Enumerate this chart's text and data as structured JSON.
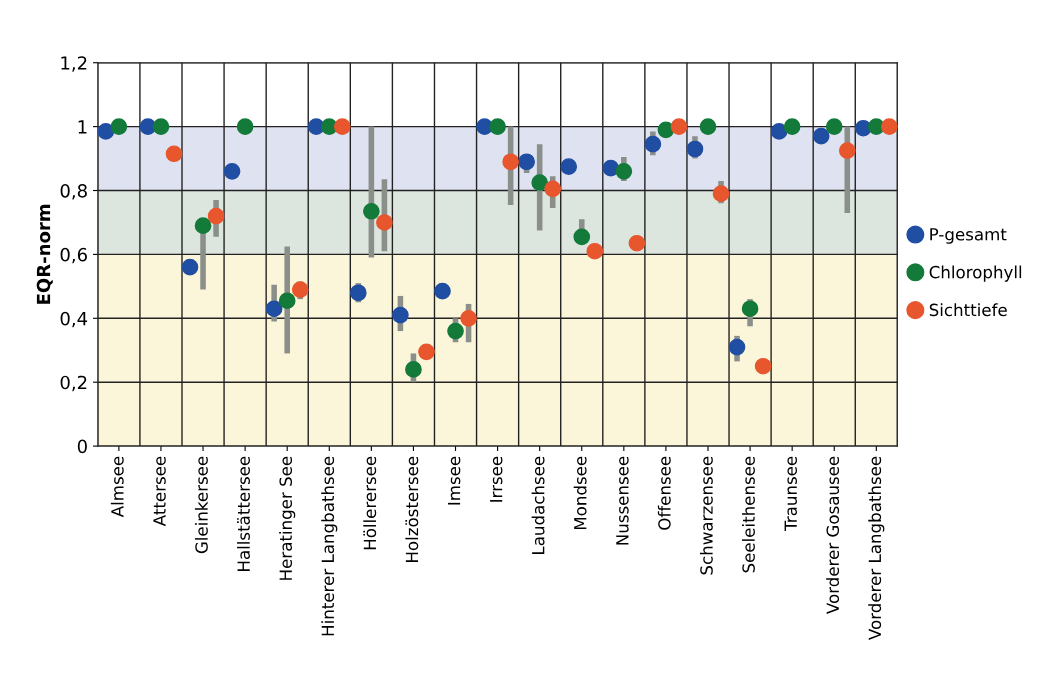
{
  "chart_data": {
    "type": "scatter",
    "ylabel": "EQR-norm",
    "categories": [
      "Almsee",
      "Attersee",
      "Gleinkersee",
      "Hallstättersee",
      "Heratinger See",
      "Hinterer Langbathsee",
      "Höllerersee",
      "Holzöstersee",
      "Imsee",
      "Irrsee",
      "Laudachsee",
      "Mondsee",
      "Nussensee",
      "Offensee",
      "Schwarzensee",
      "Seeleithensee",
      "Traunsee",
      "Vorderer Gosausee",
      "Vorderer Langbathsee"
    ],
    "series": [
      {
        "name": "P-gesamt",
        "color": "#1f4ea3",
        "values": [
          0.985,
          1.0,
          0.56,
          0.86,
          0.43,
          1.0,
          0.48,
          0.41,
          0.485,
          1.0,
          0.89,
          0.875,
          0.87,
          0.945,
          0.93,
          0.31,
          0.985,
          0.97,
          0.995
        ],
        "errors": [
          null,
          null,
          null,
          null,
          [
            0.39,
            0.505
          ],
          null,
          [
            0.45,
            0.51
          ],
          [
            0.36,
            0.47
          ],
          null,
          null,
          [
            0.855,
            0.91
          ],
          null,
          null,
          [
            0.91,
            0.985
          ],
          [
            0.9,
            0.97
          ],
          [
            0.265,
            0.345
          ],
          null,
          null,
          null
        ]
      },
      {
        "name": "Chlorophyll",
        "color": "#137a3a",
        "values": [
          1.0,
          1.0,
          0.69,
          1.0,
          0.455,
          1.0,
          0.735,
          0.24,
          0.36,
          1.0,
          0.825,
          0.655,
          0.86,
          0.99,
          1.0,
          0.43,
          1.0,
          1.0,
          1.0
        ],
        "errors": [
          null,
          null,
          [
            0.49,
            0.69
          ],
          null,
          [
            0.29,
            0.625
          ],
          null,
          [
            0.59,
            1.0
          ],
          [
            0.2,
            0.29
          ],
          [
            0.325,
            0.4
          ],
          null,
          [
            0.675,
            0.945
          ],
          [
            0.635,
            0.71
          ],
          [
            0.83,
            0.905
          ],
          null,
          null,
          [
            0.375,
            0.46
          ],
          null,
          null,
          null
        ]
      },
      {
        "name": "Sichttiefe",
        "color": "#e8562e",
        "values": [
          null,
          0.915,
          0.72,
          null,
          0.49,
          1.0,
          0.7,
          0.295,
          0.4,
          0.89,
          0.805,
          0.61,
          0.635,
          1.0,
          0.79,
          0.25,
          null,
          0.925,
          1.0
        ],
        "errors": [
          null,
          null,
          [
            0.655,
            0.77
          ],
          null,
          [
            0.46,
            0.515
          ],
          null,
          [
            0.61,
            0.835
          ],
          null,
          [
            0.325,
            0.445
          ],
          [
            0.755,
            1.0
          ],
          [
            0.745,
            0.845
          ],
          null,
          null,
          null,
          [
            0.76,
            0.83
          ],
          null,
          null,
          [
            0.73,
            1.0
          ],
          null
        ]
      }
    ],
    "ylim": [
      0,
      1.2
    ],
    "yticks": [
      0,
      {
        "value": 0.2,
        "label": "0,2"
      },
      {
        "value": 0.4,
        "label": "0,4"
      },
      {
        "value": 0.6,
        "label": "0,6"
      },
      {
        "value": 0.8,
        "label": "0,8"
      },
      1,
      {
        "value": 1.2,
        "label": "1,2"
      }
    ],
    "bands": [
      {
        "axis": "y",
        "from": 0,
        "to": 0.6,
        "color": "#fbf6d9"
      },
      {
        "axis": "y",
        "from": 0.6,
        "to": 0.8,
        "color": "#dce6de"
      },
      {
        "axis": "y",
        "from": 0.8,
        "to": 1.0,
        "color": "#dfe2f0"
      }
    ],
    "grid": true,
    "legend": "right",
    "marker": "circle"
  }
}
